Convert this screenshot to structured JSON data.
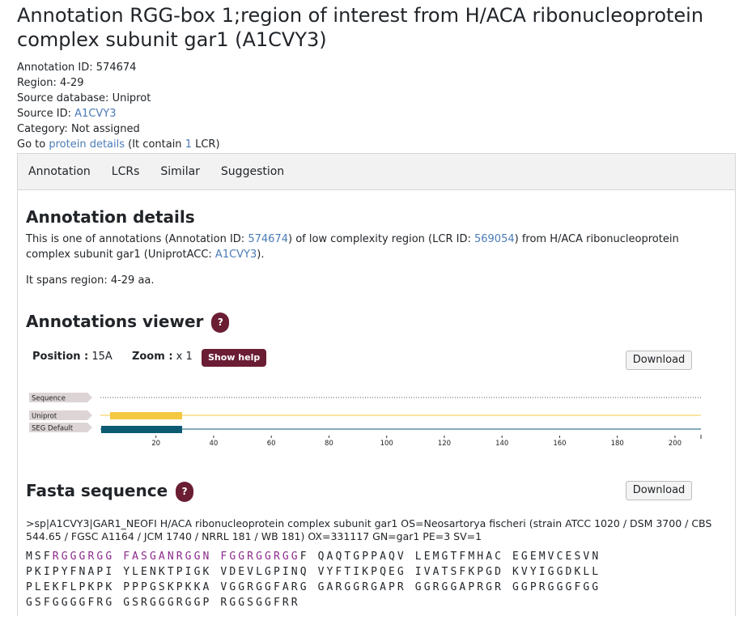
{
  "title": "Annotation RGG-box 1;region of interest from H/ACA ribonucleoprotein complex subunit gar1 (A1CVY3)",
  "meta": {
    "annotation_id": "Annotation ID: 574674",
    "region": "Region: 4-29",
    "source_db": "Source database: Uniprot",
    "source_id_label": "Source ID:",
    "source_id": "A1CVY3",
    "category": "Category: Not assigned",
    "goto_prefix": "Go to",
    "goto_link": "protein details",
    "goto_mid": "(It contain",
    "goto_count": "1",
    "goto_suffix": "LCR)"
  },
  "tabs": [
    "Annotation",
    "LCRs",
    "Similar",
    "Suggestion"
  ],
  "details": {
    "heading": "Annotation details",
    "t1": "This is one of annotations (Annotation ID:",
    "ann_id": "574674",
    "t2": ") of low complexity region (LCR ID:",
    "lcr_id": "569054",
    "t3": ") from H/ACA ribonucleoprotein complex subunit gar1 (UniprotACC:",
    "acc": "A1CVY3",
    "t4": ").",
    "span": "It spans region: 4-29 aa."
  },
  "viewer": {
    "heading": "Annotations viewer",
    "help": "?",
    "position_label": "Position :",
    "position_value": "15A",
    "zoom_label": "Zoom :",
    "zoom_value": "x 1",
    "show_help": "Show help",
    "download": "Download",
    "tracks": [
      "Sequence",
      "Uniprot",
      "SEG Default"
    ],
    "ticks": [
      "20",
      "40",
      "60",
      "80",
      "100",
      "120",
      "140",
      "160",
      "180",
      "200"
    ],
    "colors": {
      "uniprot": "#f5c842",
      "seg": "#0d5a73",
      "label_bg": "#ddd5d5"
    }
  },
  "fasta": {
    "heading": "Fasta sequence",
    "help": "?",
    "download": "Download",
    "header": ">sp|A1CVY3|GAR1_NEOFI H/ACA ribonucleoprotein complex subunit gar1 OS=Neosartorya fischeri (strain ATCC 1020 / DSM 3700 / CBS 544.65 / FGSC A1164 / JCM 1740 / NRRL 181 / WB 181) OX=331117 GN=gar1 PE=3 SV=1",
    "highlight_color": "#8b2a8b",
    "rows": [
      [
        {
          "t": "MSF"
        },
        {
          "t": "RGGGRGG FASGANRGGN FGGRGGRGG",
          "h": true
        },
        {
          "t": "F QAQTGPPAQV LEMGTFMHAC EGEMVCESVN"
        }
      ],
      [
        {
          "t": "PKIPYFNAPI YLENKTPIGK VDEVLGPINQ VYFTIKPQEG IVATSFKPGD KVYIGGDKLL"
        }
      ],
      [
        {
          "t": "PLEKFLPKPK PPPGSKPKKA VGGRGGFARG GARGGRGAPR GGRGGAPRGR GGPRGGGFGG"
        }
      ],
      [
        {
          "t": "GSFGGGGFRG GSRGGGRGGP RGGSGGFRR"
        }
      ]
    ]
  }
}
